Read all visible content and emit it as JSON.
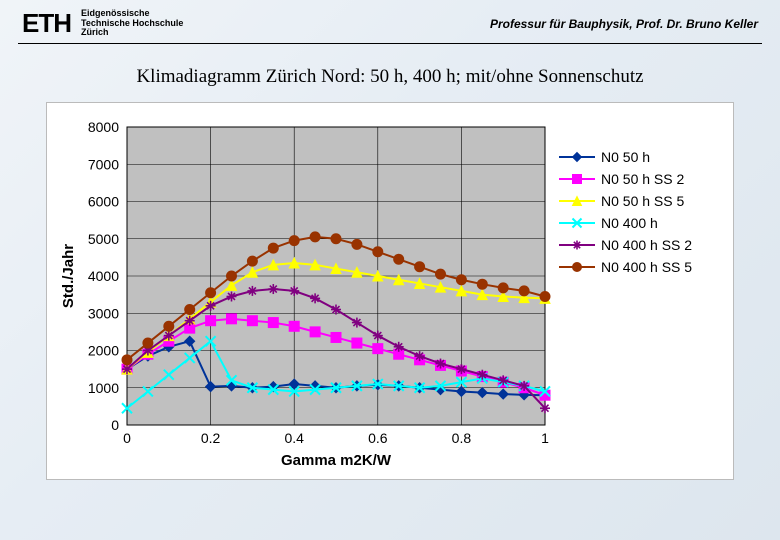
{
  "header": {
    "logo_text": "ETH",
    "logo_sub_1": "Eidgenössische",
    "logo_sub_2": "Technische Hochschule",
    "logo_sub_3": "Zürich",
    "professur": "Professur für Bauphysik, Prof. Dr. Bruno Keller"
  },
  "title": "Klimadiagramm Zürich Nord: 50 h, 400 h; mit/ohne Sonnenschutz",
  "chart": {
    "type": "line",
    "xlabel": "Gamma m2K/W",
    "ylabel": "Std./Jahr",
    "xlim": [
      0,
      1
    ],
    "ylim": [
      0,
      8000
    ],
    "xticks": [
      0,
      0.2,
      0.4,
      0.6,
      0.8,
      1
    ],
    "yticks": [
      0,
      1000,
      2000,
      3000,
      4000,
      5000,
      6000,
      7000,
      8000
    ],
    "tick_fontsize": 14,
    "label_fontsize": 15,
    "label_weight": 700,
    "grid_color": "#000000",
    "grid_width": 0.6,
    "plot_bg": "#c0c0c0",
    "outer_bg": "#ffffff",
    "x_values": [
      0.0,
      0.05,
      0.1,
      0.15,
      0.2,
      0.25,
      0.3,
      0.35,
      0.4,
      0.45,
      0.5,
      0.55,
      0.6,
      0.65,
      0.7,
      0.75,
      0.8,
      0.85,
      0.9,
      0.95,
      1.0
    ],
    "series": [
      {
        "name": "N0 50 h",
        "color": "#003399",
        "marker": "diamond",
        "y": [
          1500,
          1850,
          2100,
          2250,
          1030,
          1050,
          1000,
          1030,
          1100,
          1050,
          1000,
          1050,
          1080,
          1050,
          1000,
          950,
          900,
          870,
          830,
          810,
          800
        ]
      },
      {
        "name": "N0 50 h SS 2",
        "color": "#ff00ff",
        "marker": "square",
        "y": [
          1500,
          1900,
          2250,
          2600,
          2800,
          2850,
          2800,
          2750,
          2650,
          2500,
          2350,
          2200,
          2050,
          1900,
          1750,
          1600,
          1450,
          1300,
          1150,
          1000,
          800
        ]
      },
      {
        "name": "N0 50 h SS 5",
        "color": "#ffff00",
        "marker": "triangle",
        "y": [
          1500,
          1950,
          2400,
          2850,
          3300,
          3750,
          4100,
          4300,
          4350,
          4300,
          4200,
          4100,
          4000,
          3900,
          3800,
          3700,
          3600,
          3500,
          3450,
          3420,
          3400
        ]
      },
      {
        "name": "N0 400 h",
        "color": "#00ffff",
        "marker": "x",
        "y": [
          450,
          900,
          1350,
          1800,
          2250,
          1200,
          1000,
          950,
          900,
          950,
          1000,
          1050,
          1100,
          1050,
          1000,
          1050,
          1150,
          1250,
          1150,
          1050,
          900
        ]
      },
      {
        "name": "N0 400 h SS 2",
        "color": "#800080",
        "marker": "star",
        "y": [
          1500,
          2000,
          2400,
          2800,
          3200,
          3450,
          3600,
          3650,
          3600,
          3400,
          3100,
          2750,
          2400,
          2100,
          1850,
          1650,
          1500,
          1350,
          1200,
          1050,
          450
        ]
      },
      {
        "name": "N0 400 h SS 5",
        "color": "#993300",
        "marker": "circle",
        "y": [
          1750,
          2200,
          2650,
          3100,
          3550,
          4000,
          4400,
          4750,
          4950,
          5050,
          5000,
          4850,
          4650,
          4450,
          4250,
          4050,
          3900,
          3780,
          3680,
          3600,
          3450
        ]
      }
    ],
    "line_width": 2,
    "marker_size": 5
  }
}
